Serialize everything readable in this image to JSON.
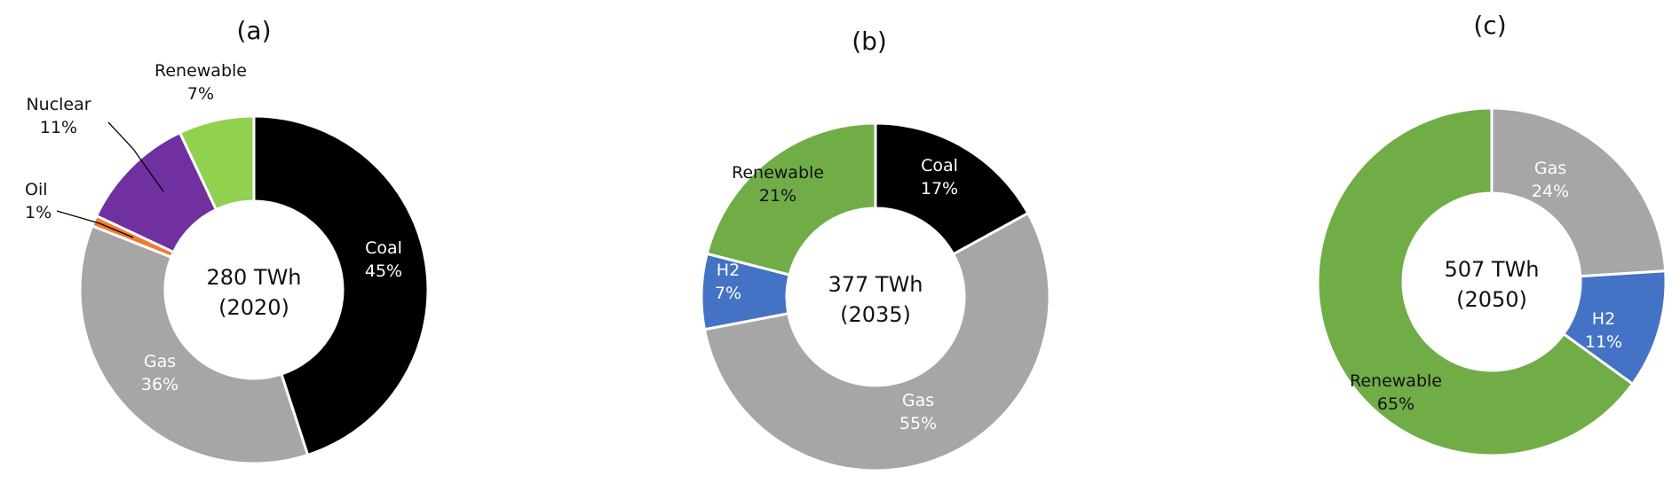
{
  "chart_data": [
    {
      "type": "pie",
      "title": "(a)",
      "center_label": [
        "280 TWh",
        "(2020)"
      ],
      "series": [
        {
          "name": "Coal",
          "label": "45%",
          "value": 45,
          "color": "#000000",
          "text_color": "#ffffff"
        },
        {
          "name": "Gas",
          "label": "36%",
          "value": 36,
          "color": "#a6a6a6",
          "text_color": "#ffffff"
        },
        {
          "name": "Oil",
          "label": "1%",
          "value": 1,
          "color": "#ed7d31",
          "text_color": "#111111"
        },
        {
          "name": "Nuclear",
          "label": "11%",
          "value": 11,
          "color": "#7030a0",
          "text_color": "#111111"
        },
        {
          "name": "Renewable",
          "label": "7%",
          "value": 7,
          "color": "#92d050",
          "text_color": "#111111"
        }
      ]
    },
    {
      "type": "pie",
      "title": "(b)",
      "center_label": [
        "377 TWh",
        "(2035)"
      ],
      "series": [
        {
          "name": "Coal",
          "label": "17%",
          "value": 17,
          "color": "#000000",
          "text_color": "#ffffff"
        },
        {
          "name": "Gas",
          "label": "55%",
          "value": 55,
          "color": "#a6a6a6",
          "text_color": "#ffffff"
        },
        {
          "name": "H2",
          "label": "7%",
          "value": 7,
          "color": "#4472c4",
          "text_color": "#ffffff"
        },
        {
          "name": "Renewable",
          "label": "21%",
          "value": 21,
          "color": "#70ad47",
          "text_color": "#111111"
        }
      ]
    },
    {
      "type": "pie",
      "title": "(c)",
      "center_label": [
        "507 TWh",
        "(2050)"
      ],
      "series": [
        {
          "name": "Gas",
          "label": "24%",
          "value": 24,
          "color": "#a6a6a6",
          "text_color": "#ffffff"
        },
        {
          "name": "H2",
          "label": "11%",
          "value": 11,
          "color": "#4472c4",
          "text_color": "#ffffff"
        },
        {
          "name": "Renewable",
          "label": "65%",
          "value": 65,
          "color": "#70ad47",
          "text_color": "#111111"
        }
      ]
    }
  ]
}
